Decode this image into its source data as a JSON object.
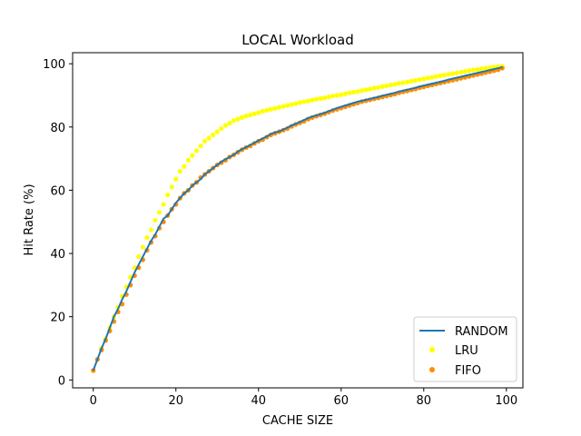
{
  "chart_data": {
    "type": "line",
    "title": "LOCAL Workload",
    "xlabel": "CACHE SIZE",
    "ylabel": "Hit Rate (%)",
    "xlim": [
      -5,
      104
    ],
    "ylim": [
      -2.5,
      103.5
    ],
    "xticks": [
      0,
      20,
      40,
      60,
      80,
      100
    ],
    "yticks": [
      0,
      20,
      40,
      60,
      80,
      100
    ],
    "grid": false,
    "legend_position": "bottom-right",
    "series": [
      {
        "name": "RANDOM",
        "style": "line",
        "color": "#1f77b4",
        "x": [
          0,
          1,
          2,
          3,
          4,
          5,
          6,
          7,
          8,
          9,
          10,
          11,
          12,
          13,
          14,
          15,
          16,
          17,
          18,
          19,
          20,
          21,
          22,
          23,
          24,
          25,
          26,
          27,
          28,
          29,
          30,
          31,
          32,
          33,
          34,
          35,
          36,
          37,
          38,
          39,
          40,
          41,
          42,
          43,
          44,
          45,
          46,
          47,
          48,
          49,
          50,
          51,
          52,
          53,
          54,
          55,
          56,
          57,
          58,
          59,
          60,
          61,
          62,
          63,
          64,
          65,
          66,
          67,
          68,
          69,
          70,
          71,
          72,
          73,
          74,
          75,
          76,
          77,
          78,
          79,
          80,
          81,
          82,
          83,
          84,
          85,
          86,
          87,
          88,
          89,
          90,
          91,
          92,
          93,
          94,
          95,
          96,
          97,
          98,
          99
        ],
        "y": [
          3,
          6.5,
          10,
          13,
          16.5,
          20,
          22.5,
          25.5,
          28,
          31,
          34,
          36.5,
          39,
          41.5,
          44,
          46,
          48.5,
          51,
          52,
          54,
          56,
          57.5,
          59,
          60,
          61.5,
          62.5,
          63.5,
          65,
          66,
          67,
          68,
          69,
          69.8,
          70.5,
          71.2,
          72.2,
          73,
          73.6,
          74.3,
          75,
          75.7,
          76.4,
          77,
          77.8,
          78.3,
          78.6,
          79.2,
          79.8,
          80.5,
          81,
          81.6,
          82.2,
          82.8,
          83.3,
          83.7,
          84.1,
          84.5,
          85,
          85.5,
          86,
          86.4,
          86.8,
          87.2,
          87.6,
          88,
          88.3,
          88.6,
          88.9,
          89.2,
          89.5,
          89.9,
          90.2,
          90.5,
          90.8,
          91.2,
          91.5,
          91.8,
          92.1,
          92.4,
          92.8,
          93.1,
          93.4,
          93.7,
          94,
          94.3,
          94.6,
          95,
          95.3,
          95.6,
          95.9,
          96.2,
          96.5,
          96.8,
          97.1,
          97.4,
          97.7,
          98,
          98.3,
          98.6,
          98.9
        ]
      },
      {
        "name": "LRU",
        "style": "scatter",
        "color": "#ffff00",
        "x": [
          0,
          1,
          2,
          3,
          4,
          5,
          6,
          7,
          8,
          9,
          10,
          11,
          12,
          13,
          14,
          15,
          16,
          17,
          18,
          19,
          20,
          21,
          22,
          23,
          24,
          25,
          26,
          27,
          28,
          29,
          30,
          31,
          32,
          33,
          34,
          35,
          36,
          37,
          38,
          39,
          40,
          41,
          42,
          43,
          44,
          45,
          46,
          47,
          48,
          49,
          50,
          51,
          52,
          53,
          54,
          55,
          56,
          57,
          58,
          59,
          60,
          61,
          62,
          63,
          64,
          65,
          66,
          67,
          68,
          69,
          70,
          71,
          72,
          73,
          74,
          75,
          76,
          77,
          78,
          79,
          80,
          81,
          82,
          83,
          84,
          85,
          86,
          87,
          88,
          89,
          90,
          91,
          92,
          93,
          94,
          95,
          96,
          97,
          98,
          99
        ],
        "y": [
          3,
          6.5,
          10,
          13,
          16.5,
          20,
          23,
          26.5,
          29.5,
          32.5,
          35.5,
          39,
          42,
          45,
          47.5,
          50.5,
          53,
          55.5,
          58.5,
          61,
          63.5,
          66,
          67.5,
          69.5,
          71,
          72.5,
          74,
          75.5,
          76.5,
          77.5,
          78.5,
          79.5,
          80.5,
          81.2,
          82,
          82.5,
          83,
          83.5,
          83.8,
          84.2,
          84.5,
          85,
          85.3,
          85.6,
          85.9,
          86.2,
          86.5,
          86.8,
          87.1,
          87.4,
          87.7,
          88,
          88.2,
          88.5,
          88.8,
          89,
          89.2,
          89.5,
          89.8,
          90,
          90.2,
          90.5,
          90.8,
          91,
          91.2,
          91.5,
          91.8,
          92,
          92.3,
          92.5,
          92.8,
          93,
          93.3,
          93.5,
          93.8,
          94,
          94.2,
          94.5,
          94.7,
          95,
          95.2,
          95.5,
          95.7,
          96,
          96.2,
          96.4,
          96.7,
          96.9,
          97.1,
          97.3,
          97.6,
          97.8,
          98,
          98.2,
          98.4,
          98.6,
          98.8,
          99,
          99.1,
          99.2
        ]
      },
      {
        "name": "FIFO",
        "style": "scatter",
        "color": "#ff8c00",
        "x": [
          0,
          1,
          2,
          3,
          4,
          5,
          6,
          7,
          8,
          9,
          10,
          11,
          12,
          13,
          14,
          15,
          16,
          17,
          18,
          19,
          20,
          21,
          22,
          23,
          24,
          25,
          26,
          27,
          28,
          29,
          30,
          31,
          32,
          33,
          34,
          35,
          36,
          37,
          38,
          39,
          40,
          41,
          42,
          43,
          44,
          45,
          46,
          47,
          48,
          49,
          50,
          51,
          52,
          53,
          54,
          55,
          56,
          57,
          58,
          59,
          60,
          61,
          62,
          63,
          64,
          65,
          66,
          67,
          68,
          69,
          70,
          71,
          72,
          73,
          74,
          75,
          76,
          77,
          78,
          79,
          80,
          81,
          82,
          83,
          84,
          85,
          86,
          87,
          88,
          89,
          90,
          91,
          92,
          93,
          94,
          95,
          96,
          97,
          98,
          99
        ],
        "y": [
          3,
          6.5,
          9.5,
          12.5,
          15.5,
          18.5,
          21.5,
          24,
          27,
          30,
          33,
          35.5,
          38,
          41,
          43.5,
          45.5,
          48,
          50,
          52,
          54,
          55.5,
          57.5,
          59,
          60,
          61.5,
          62.5,
          64,
          65,
          66,
          67,
          68,
          68.7,
          69.5,
          70.5,
          71.2,
          72,
          72.8,
          73.5,
          74,
          74.8,
          75.5,
          76,
          76.8,
          77.5,
          78,
          78.5,
          79,
          79.5,
          80.2,
          80.8,
          81.3,
          81.8,
          82.5,
          83,
          83.4,
          83.8,
          84.2,
          84.7,
          85.2,
          85.6,
          86,
          86.4,
          86.8,
          87.2,
          87.6,
          88,
          88.3,
          88.6,
          88.9,
          89.2,
          89.5,
          89.8,
          90.1,
          90.4,
          90.8,
          91.1,
          91.4,
          91.7,
          92,
          92.4,
          92.7,
          93,
          93.3,
          93.6,
          93.9,
          94.2,
          94.5,
          94.8,
          95.1,
          95.4,
          95.7,
          96,
          96.3,
          96.6,
          96.9,
          97.2,
          97.5,
          97.8,
          98.1,
          98.6
        ]
      }
    ]
  }
}
